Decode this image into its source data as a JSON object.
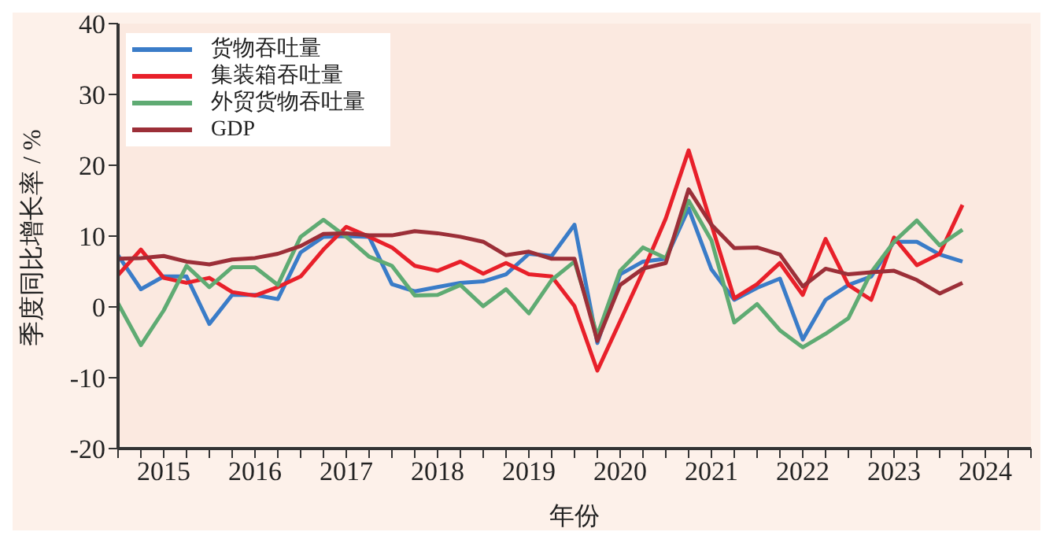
{
  "chart_data": {
    "type": "line",
    "xlabel": "年份",
    "ylabel": "季度同比增长率 / %",
    "x": [
      2015,
      2015.25,
      2015.5,
      2015.75,
      2016,
      2016.25,
      2016.5,
      2016.75,
      2017,
      2017.25,
      2017.5,
      2017.75,
      2018,
      2018.25,
      2018.5,
      2018.75,
      2019,
      2019.25,
      2019.5,
      2019.75,
      2020,
      2020.25,
      2020.5,
      2020.75,
      2021,
      2021.25,
      2021.5,
      2021.75,
      2022,
      2022.25,
      2022.5,
      2022.75,
      2023,
      2023.25,
      2023.5,
      2023.75,
      2024,
      2024.25
    ],
    "series": [
      {
        "name": "货物吞吐量",
        "color": "#3a7cc8",
        "values": [
          7.3,
          2.5,
          4.3,
          4.3,
          -2.4,
          1.7,
          1.7,
          1.1,
          7.7,
          9.9,
          10,
          9.9,
          3.2,
          2.2,
          2.8,
          3.4,
          3.6,
          4.6,
          7.5,
          7.2,
          11.6,
          -5.1,
          4.6,
          6.4,
          6.8,
          13.9,
          5.3,
          1.0,
          2.7,
          4.0,
          -4.6,
          1.0,
          3.1,
          4.3,
          9.2,
          9.2,
          7.4,
          6.4
        ]
      },
      {
        "name": "集装箱吞吐量",
        "color": "#e8202a",
        "values": [
          4.5,
          8.1,
          4.1,
          3.4,
          4.1,
          2.1,
          1.6,
          2.8,
          4.3,
          8.1,
          11.3,
          9.9,
          8.4,
          5.8,
          5.1,
          6.4,
          4.7,
          6.2,
          4.6,
          4.3,
          0.1,
          -9.0,
          -2.0,
          5.0,
          12.5,
          22.1,
          11.6,
          1.2,
          3.2,
          6.2,
          1.7,
          9.6,
          3.1,
          1.0,
          9.8,
          5.9,
          7.5,
          14.4
        ]
      },
      {
        "name": "外贸货物吞吐量",
        "color": "#5fab73",
        "values": [
          0.5,
          -5.4,
          -0.5,
          5.8,
          2.8,
          5.6,
          5.6,
          3.1,
          9.9,
          12.3,
          9.9,
          7.1,
          5.8,
          1.6,
          1.7,
          3.1,
          0.1,
          2.5,
          -0.9,
          3.8,
          6.4,
          -4.0,
          5.1,
          8.4,
          6.9,
          15.0,
          9.4,
          -2.2,
          0.4,
          -3.3,
          -5.7,
          -3.8,
          -1.6,
          4.9,
          9.2,
          12.2,
          8.7,
          10.9
        ]
      },
      {
        "name": "GDP",
        "color": "#9c2f38",
        "values": [
          6.8,
          6.9,
          7.2,
          6.4,
          6.0,
          6.7,
          6.9,
          7.5,
          8.6,
          10.3,
          10.4,
          10.1,
          10.1,
          10.7,
          10.4,
          9.9,
          9.2,
          7.3,
          7.8,
          6.8,
          6.8,
          -4.8,
          3.1,
          5.4,
          6.2,
          16.6,
          11.6,
          8.3,
          8.4,
          7.4,
          2.9,
          5.4,
          4.6,
          4.9,
          5.1,
          3.8,
          1.9,
          3.4
        ]
      }
    ],
    "xlim": [
      2015,
      2025
    ],
    "xticks": [
      {
        "value": 2015,
        "label": null
      },
      {
        "value": 2015.25,
        "label": null
      },
      {
        "value": 2015.5,
        "label": "2015"
      },
      {
        "value": 2015.75,
        "label": null
      },
      {
        "value": 2016,
        "label": null
      },
      {
        "value": 2016.25,
        "label": null
      },
      {
        "value": 2016.5,
        "label": "2016"
      },
      {
        "value": 2016.75,
        "label": null
      },
      {
        "value": 2017,
        "label": null
      },
      {
        "value": 2017.25,
        "label": null
      },
      {
        "value": 2017.5,
        "label": "2017"
      },
      {
        "value": 2017.75,
        "label": null
      },
      {
        "value": 2018,
        "label": null
      },
      {
        "value": 2018.25,
        "label": null
      },
      {
        "value": 2018.5,
        "label": "2018"
      },
      {
        "value": 2018.75,
        "label": null
      },
      {
        "value": 2019,
        "label": null
      },
      {
        "value": 2019.25,
        "label": null
      },
      {
        "value": 2019.5,
        "label": "2019"
      },
      {
        "value": 2019.75,
        "label": null
      },
      {
        "value": 2020,
        "label": null
      },
      {
        "value": 2020.25,
        "label": null
      },
      {
        "value": 2020.5,
        "label": "2020"
      },
      {
        "value": 2020.75,
        "label": null
      },
      {
        "value": 2021,
        "label": null
      },
      {
        "value": 2021.25,
        "label": null
      },
      {
        "value": 2021.5,
        "label": "2021"
      },
      {
        "value": 2021.75,
        "label": null
      },
      {
        "value": 2022,
        "label": null
      },
      {
        "value": 2022.25,
        "label": null
      },
      {
        "value": 2022.5,
        "label": "2022"
      },
      {
        "value": 2022.75,
        "label": null
      },
      {
        "value": 2023,
        "label": null
      },
      {
        "value": 2023.25,
        "label": null
      },
      {
        "value": 2023.5,
        "label": "2023"
      },
      {
        "value": 2023.75,
        "label": null
      },
      {
        "value": 2024,
        "label": null
      },
      {
        "value": 2024.25,
        "label": null
      },
      {
        "value": 2024.5,
        "label": "2024"
      },
      {
        "value": 2024.75,
        "label": null
      },
      {
        "value": 2025,
        "label": null
      }
    ],
    "ylim": [
      -20,
      40
    ],
    "yticks": [
      -20,
      -10,
      0,
      10,
      20,
      30,
      40
    ],
    "grid": false,
    "legend": "top left",
    "marker": "none",
    "line_style": "solid"
  }
}
